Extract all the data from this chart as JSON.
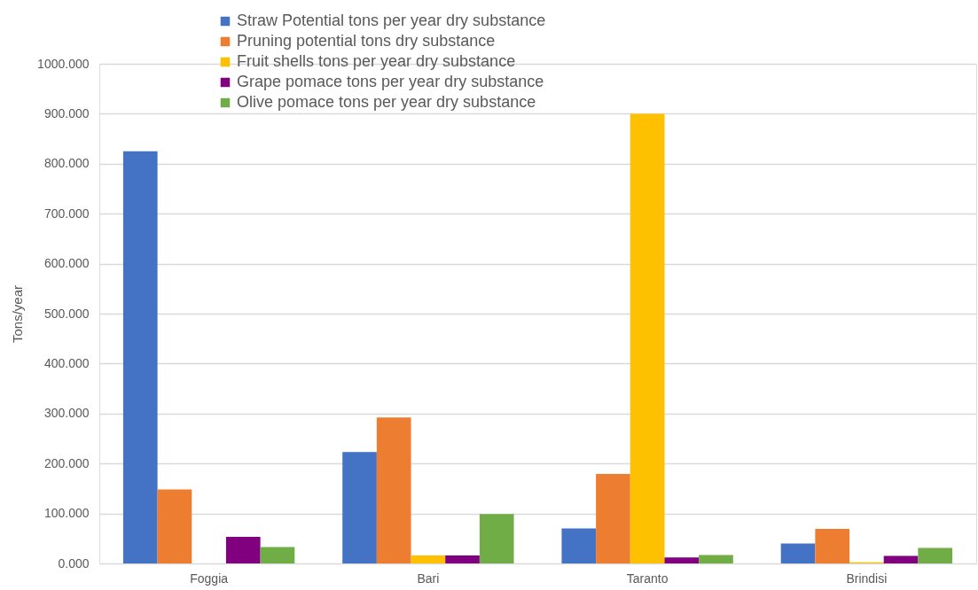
{
  "chart_data": {
    "type": "bar",
    "ylabel": "Tons/year",
    "categories": [
      "Foggia",
      "Bari",
      "Taranto",
      "Brindisi"
    ],
    "series": [
      {
        "name": "Straw Potential tons per year dry substance",
        "color": "#4472c4",
        "values": [
          825,
          223,
          70,
          40
        ]
      },
      {
        "name": "Pruning potential tons dry substance",
        "color": "#ed7d31",
        "values": [
          148,
          292,
          179,
          69
        ]
      },
      {
        "name": "Fruit shells tons per year dry substance",
        "color": "#ffc000",
        "values": [
          null,
          16,
          900,
          2
        ]
      },
      {
        "name": "Grape pomace tons per year dry substance",
        "color": "#800080",
        "values": [
          53,
          16,
          12,
          15
        ]
      },
      {
        "name": "Olive pomace tons per year dry substance",
        "color": "#70ad47",
        "values": [
          33,
          99,
          17,
          31
        ]
      }
    ],
    "ylim": [
      0,
      1000
    ],
    "yticks": [
      {
        "value": 0,
        "label": "0.000"
      },
      {
        "value": 100,
        "label": "100.000"
      },
      {
        "value": 200,
        "label": "200.000"
      },
      {
        "value": 300,
        "label": "300.000"
      },
      {
        "value": 400,
        "label": "400.000"
      },
      {
        "value": 500,
        "label": "500.000"
      },
      {
        "value": 600,
        "label": "600.000"
      },
      {
        "value": 700,
        "label": "700.000"
      },
      {
        "value": 800,
        "label": "800.000"
      },
      {
        "value": 900,
        "label": "900.000"
      },
      {
        "value": 1000,
        "label": "1000.000"
      }
    ],
    "grid": "y",
    "legend": "top"
  }
}
